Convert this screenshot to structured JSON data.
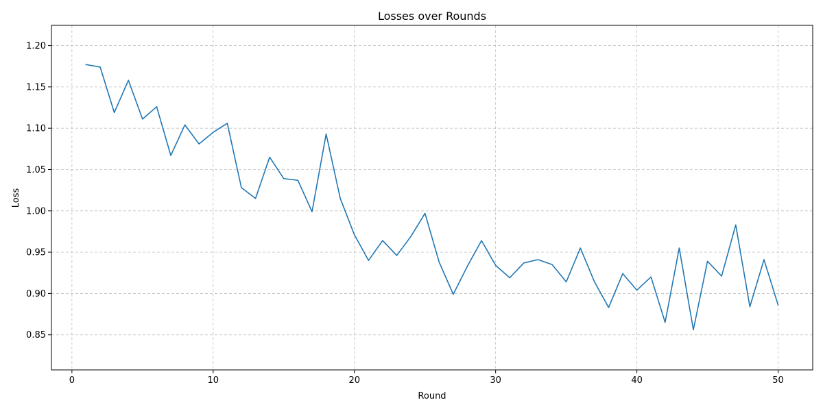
{
  "chart_data": {
    "type": "line",
    "title": "Losses over Rounds",
    "xlabel": "Round",
    "ylabel": "Loss",
    "xlim": [
      -1.45,
      52.45
    ],
    "ylim": [
      0.8075,
      1.2245
    ],
    "xticks": [
      0,
      10,
      20,
      30,
      40,
      50
    ],
    "xtick_labels": [
      "0",
      "10",
      "20",
      "30",
      "40",
      "50"
    ],
    "yticks": [
      0.85,
      0.9,
      0.95,
      1.0,
      1.05,
      1.1,
      1.15,
      1.2
    ],
    "ytick_labels": [
      "0.85",
      "0.90",
      "0.95",
      "1.00",
      "1.05",
      "1.10",
      "1.15",
      "1.20"
    ],
    "grid": true,
    "line_color": "#1f77b4",
    "x": [
      1,
      2,
      3,
      4,
      5,
      6,
      7,
      8,
      9,
      10,
      11,
      12,
      13,
      14,
      15,
      16,
      17,
      18,
      19,
      20,
      21,
      22,
      23,
      24,
      25,
      26,
      27,
      28,
      29,
      30,
      31,
      32,
      33,
      34,
      35,
      36,
      37,
      38,
      39,
      40,
      41,
      42,
      43,
      44,
      45,
      46,
      47,
      48,
      49,
      50
    ],
    "y": [
      1.177,
      1.174,
      1.119,
      1.158,
      1.111,
      1.126,
      1.067,
      1.104,
      1.081,
      1.095,
      1.106,
      1.028,
      1.015,
      1.065,
      1.039,
      1.037,
      0.999,
      1.093,
      1.015,
      0.971,
      0.94,
      0.964,
      0.946,
      0.969,
      0.997,
      0.938,
      0.899,
      0.933,
      0.964,
      0.934,
      0.919,
      0.937,
      0.941,
      0.935,
      0.914,
      0.955,
      0.914,
      0.883,
      0.924,
      0.904,
      0.92,
      0.865,
      0.955,
      0.856,
      0.939,
      0.921,
      0.983,
      0.884,
      0.941,
      0.886
    ]
  }
}
